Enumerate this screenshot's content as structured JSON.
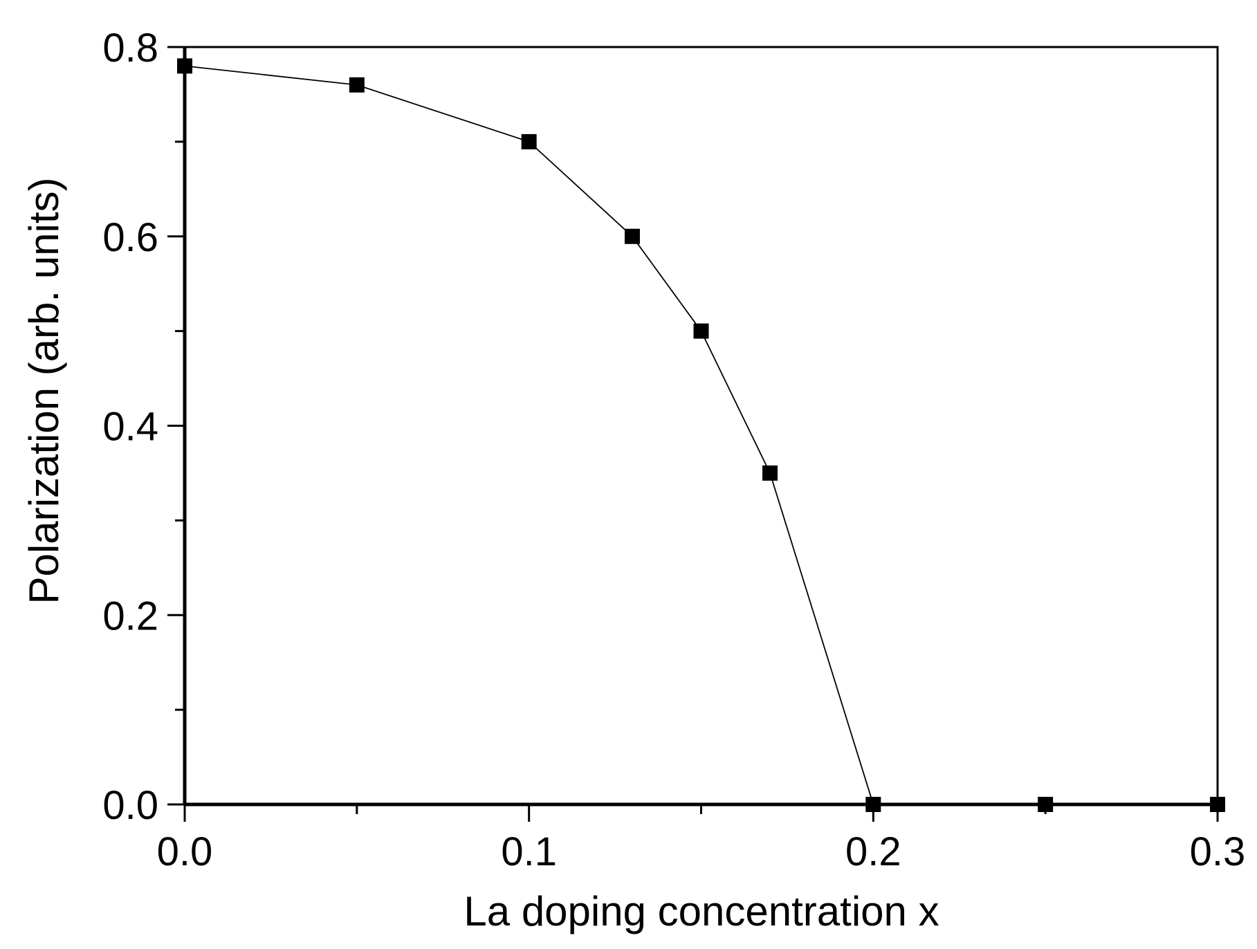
{
  "chart_data": {
    "type": "line",
    "x_label": "La doping concentration x",
    "y_label": "Polarization (arb. units)",
    "x": [
      0,
      0.05,
      0.1,
      0.13,
      0.15,
      0.17,
      0.2,
      0.25,
      0.3
    ],
    "series": [
      {
        "color": "#000000",
        "values": [
          0.78,
          0.76,
          0.7,
          0.6,
          0.5,
          0.35,
          0,
          0,
          0
        ]
      }
    ],
    "xlim": [
      0,
      0.3
    ],
    "ylim": [
      0,
      0.8
    ],
    "xticks": [
      {
        "value": 0,
        "label": "0.0"
      },
      {
        "value": 0.1,
        "label": "0.1"
      },
      {
        "value": 0.2,
        "label": "0.2"
      },
      {
        "value": 0.3,
        "label": "0.3"
      }
    ],
    "yticks": [
      {
        "value": 0,
        "label": "0.0"
      },
      {
        "value": 0.2,
        "label": "0.2"
      },
      {
        "value": 0.4,
        "label": "0.4"
      },
      {
        "value": 0.6,
        "label": "0.6"
      },
      {
        "value": 0.8,
        "label": "0.8"
      }
    ],
    "xminorticks": [
      0.05,
      0.15,
      0.25
    ],
    "yminorticks": [
      0.1,
      0.3,
      0.5,
      0.7
    ],
    "marker": "square",
    "grid": false
  }
}
